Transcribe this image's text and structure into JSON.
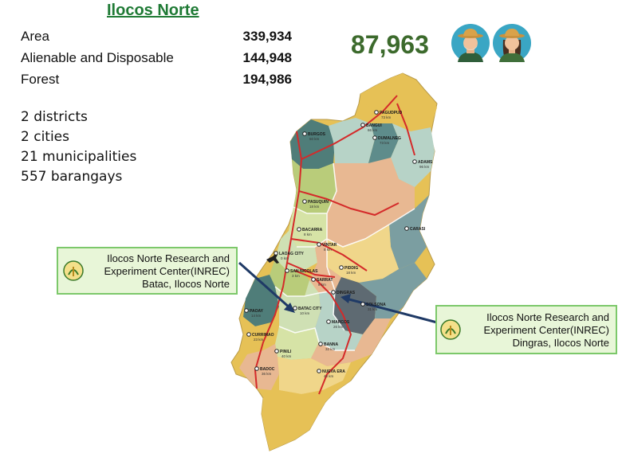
{
  "header": {
    "title": "Ilocos Norte"
  },
  "land_area": [
    {
      "label": "Area",
      "value": "339,934"
    },
    {
      "label": "Alienable and Disposable",
      "value": "144,948"
    },
    {
      "label": "Forest",
      "value": "194,986"
    }
  ],
  "admin": [
    "2 districts",
    "2 cities",
    "21 municipalities",
    "557 barangays"
  ],
  "farmers": {
    "count": "87,963",
    "icons": [
      "male-farmer-icon",
      "female-farmer-icon"
    ]
  },
  "callouts": [
    {
      "line1": "Ilocos Norte Research and",
      "line2": "Experiment Center(INREC)",
      "line3": "Batac, Ilocos Norte",
      "logo": "da-logo-icon"
    },
    {
      "line1": "Ilocos Norte Research and",
      "line2": "Experiment Center(INREC)",
      "line3": "Dingras, Ilocos Norte",
      "logo": "da-logo-icon"
    }
  ],
  "places": [
    {
      "name": "PAGUDPUD",
      "dist": "73 km"
    },
    {
      "name": "BANGUI",
      "dist": "66 km"
    },
    {
      "name": "DUMALNEG",
      "dist": "73 km"
    },
    {
      "name": "BURGOS",
      "dist": "50 km"
    },
    {
      "name": "ADAMS",
      "dist": "96 km"
    },
    {
      "name": "PASUQUIN",
      "dist": "18 km"
    },
    {
      "name": "BACARRA",
      "dist": "8 km"
    },
    {
      "name": "VINTAR",
      "dist": "8 km"
    },
    {
      "name": "CARASI",
      "dist": ""
    },
    {
      "name": "LAOAG CITY",
      "dist": "0 km"
    },
    {
      "name": "SAN NICOLAS",
      "dist": "3 km"
    },
    {
      "name": "SARRAT",
      "dist": "8 km"
    },
    {
      "name": "PIDDIG",
      "dist": "18 km"
    },
    {
      "name": "DINGRAS",
      "dist": ""
    },
    {
      "name": "SOLSONA",
      "dist": "31 km"
    },
    {
      "name": "PAOAY",
      "dist": "14 km"
    },
    {
      "name": "BATAC CITY",
      "dist": "10 km"
    },
    {
      "name": "MARCOS",
      "dist": "26 km"
    },
    {
      "name": "CURRIMAO",
      "dist": "23 km"
    },
    {
      "name": "PINILI",
      "dist": "40 km"
    },
    {
      "name": "BANNA",
      "dist": "32 km"
    },
    {
      "name": "BADOC",
      "dist": "36 km"
    },
    {
      "name": "NUEVA ERA",
      "dist": "40 km"
    }
  ],
  "colors": {
    "title": "#1f7a35",
    "farmers": "#3c6a2c",
    "callout_bg": "#e8f6d8",
    "callout_border": "#7cc86a",
    "arrow": "#1f3a66",
    "road": "#d42a2a"
  }
}
